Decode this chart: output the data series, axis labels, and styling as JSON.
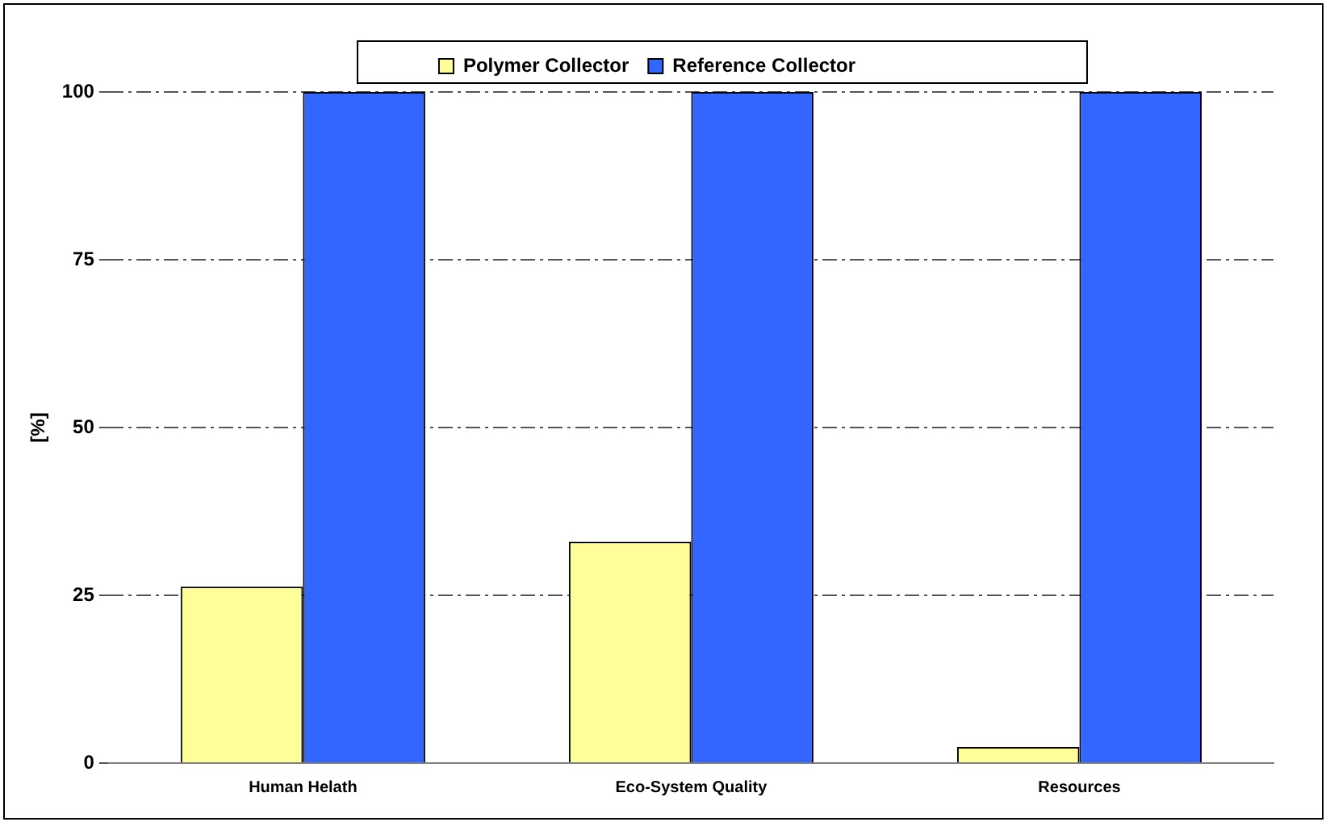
{
  "chart_data": {
    "type": "bar",
    "ylabel": "[%]",
    "categories": [
      "Human Helath",
      "Eco-System Quality",
      "Resources"
    ],
    "series": [
      {
        "name": "Polymer Collector",
        "color": "#ffff99",
        "values": [
          26.3,
          33,
          2.4
        ]
      },
      {
        "name": "Reference Collector",
        "color": "#3366ff",
        "values": [
          100,
          100,
          100
        ]
      }
    ],
    "ylim": [
      0,
      100
    ],
    "yticks": [
      0,
      25,
      50,
      75,
      100
    ],
    "grid": "y",
    "legend": "top"
  }
}
